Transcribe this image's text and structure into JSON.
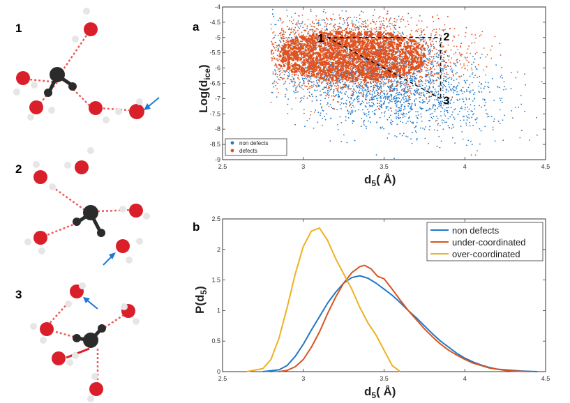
{
  "panel_labels": {
    "a": "a",
    "b": "b"
  },
  "molecules": [
    {
      "label": "1"
    },
    {
      "label": "2"
    },
    {
      "label": "3"
    }
  ],
  "colors": {
    "non_defects": "#1f78c8",
    "defects": "#e0521f",
    "under": "#d9531f",
    "over": "#edb120",
    "oxygen": "#d9202a",
    "carbon": "#2b2b2b",
    "hydrogen": "#e6e6e6",
    "hbond": "#ee5a5a",
    "arrow": "#1f78d8"
  },
  "chart_data": [
    {
      "type": "scatter",
      "panel": "a",
      "xlabel_main": "d",
      "xlabel_sub": "5",
      "xlabel_tail": "( Å)",
      "ylabel_main": "Log(d",
      "ylabel_sub": "ice",
      "ylabel_tail": ")",
      "xlim": [
        2.5,
        4.5
      ],
      "ylim": [
        -9,
        -4
      ],
      "xticks": [
        "2.5",
        "3",
        "3.5",
        "4",
        "4.5"
      ],
      "xtick_values": [
        2.5,
        3,
        3.5,
        4,
        4.5
      ],
      "yticks": [
        "-4",
        "-4.5",
        "-5",
        "-5.5",
        "-6",
        "-6.5",
        "-7",
        "-7.5",
        "-8",
        "-8.5",
        "-9"
      ],
      "ytick_values": [
        -4,
        -4.5,
        -5,
        -5.5,
        -6,
        -6.5,
        -7,
        -7.5,
        -8,
        -8.5,
        -9
      ],
      "series": [
        {
          "name": "non defects",
          "center_x": 3.45,
          "center_y": -6.3,
          "spread_x": 0.34,
          "spread_y": 0.8
        },
        {
          "name": "defects",
          "center_x": 3.3,
          "center_y": -5.6,
          "spread_x": 0.3,
          "spread_y": 0.55
        }
      ],
      "legend": [
        "non defects",
        "defects"
      ],
      "legend_position": "bottom-left",
      "annotations": [
        {
          "label": "1",
          "x": 3.15,
          "y": -5.0
        },
        {
          "label": "2",
          "x": 3.85,
          "y": -5.0
        },
        {
          "label": "3",
          "x": 3.85,
          "y": -7.0
        }
      ]
    },
    {
      "type": "line",
      "panel": "b",
      "xlabel_main": "d",
      "xlabel_sub": "5",
      "xlabel_tail": "( Å)",
      "ylabel_main": "P(d",
      "ylabel_sub": "5",
      "ylabel_tail": ")",
      "xlim": [
        2.5,
        4.5
      ],
      "ylim": [
        0,
        2.5
      ],
      "xticks": [
        "2.5",
        "3",
        "3.5",
        "4",
        "4.5"
      ],
      "xtick_values": [
        2.5,
        3,
        3.5,
        4,
        4.5
      ],
      "yticks": [
        "0",
        "0.5",
        "1",
        "1.5",
        "2",
        "2.5"
      ],
      "ytick_values": [
        0,
        0.5,
        1,
        1.5,
        2,
        2.5
      ],
      "legend_position": "top-right",
      "series": [
        {
          "name": "non defects",
          "x": [
            2.75,
            2.85,
            2.9,
            2.95,
            3.0,
            3.05,
            3.1,
            3.15,
            3.2,
            3.25,
            3.3,
            3.35,
            3.4,
            3.45,
            3.5,
            3.55,
            3.6,
            3.65,
            3.7,
            3.75,
            3.8,
            3.85,
            3.9,
            3.95,
            4.0,
            4.05,
            4.1,
            4.15,
            4.2,
            4.25,
            4.3,
            4.35,
            4.4,
            4.45
          ],
          "y": [
            0,
            0.03,
            0.1,
            0.25,
            0.45,
            0.68,
            0.9,
            1.12,
            1.3,
            1.45,
            1.54,
            1.57,
            1.53,
            1.45,
            1.35,
            1.25,
            1.13,
            1.0,
            0.88,
            0.75,
            0.62,
            0.5,
            0.4,
            0.3,
            0.22,
            0.16,
            0.11,
            0.07,
            0.04,
            0.03,
            0.02,
            0.01,
            0.005,
            0
          ]
        },
        {
          "name": "under-coordinated",
          "x": [
            2.85,
            2.9,
            2.95,
            3.0,
            3.05,
            3.1,
            3.15,
            3.2,
            3.25,
            3.3,
            3.35,
            3.38,
            3.42,
            3.46,
            3.5,
            3.55,
            3.6,
            3.65,
            3.7,
            3.75,
            3.8,
            3.85,
            3.9,
            3.95,
            4.0,
            4.05,
            4.1,
            4.15,
            4.2,
            4.25,
            4.3,
            4.35,
            4.4
          ],
          "y": [
            0,
            0.02,
            0.08,
            0.2,
            0.4,
            0.65,
            0.95,
            1.22,
            1.45,
            1.62,
            1.72,
            1.74,
            1.68,
            1.56,
            1.52,
            1.35,
            1.17,
            1.0,
            0.85,
            0.7,
            0.57,
            0.45,
            0.35,
            0.27,
            0.2,
            0.14,
            0.1,
            0.06,
            0.04,
            0.02,
            0.01,
            0.005,
            0
          ]
        },
        {
          "name": "over-coordinated",
          "x": [
            2.65,
            2.75,
            2.8,
            2.85,
            2.9,
            2.95,
            3.0,
            3.05,
            3.1,
            3.15,
            3.2,
            3.25,
            3.3,
            3.35,
            3.4,
            3.45,
            3.5,
            3.55,
            3.6
          ],
          "y": [
            0,
            0.05,
            0.2,
            0.55,
            1.05,
            1.6,
            2.05,
            2.3,
            2.35,
            2.15,
            1.85,
            1.6,
            1.35,
            1.05,
            0.8,
            0.6,
            0.35,
            0.1,
            0
          ]
        }
      ]
    }
  ]
}
